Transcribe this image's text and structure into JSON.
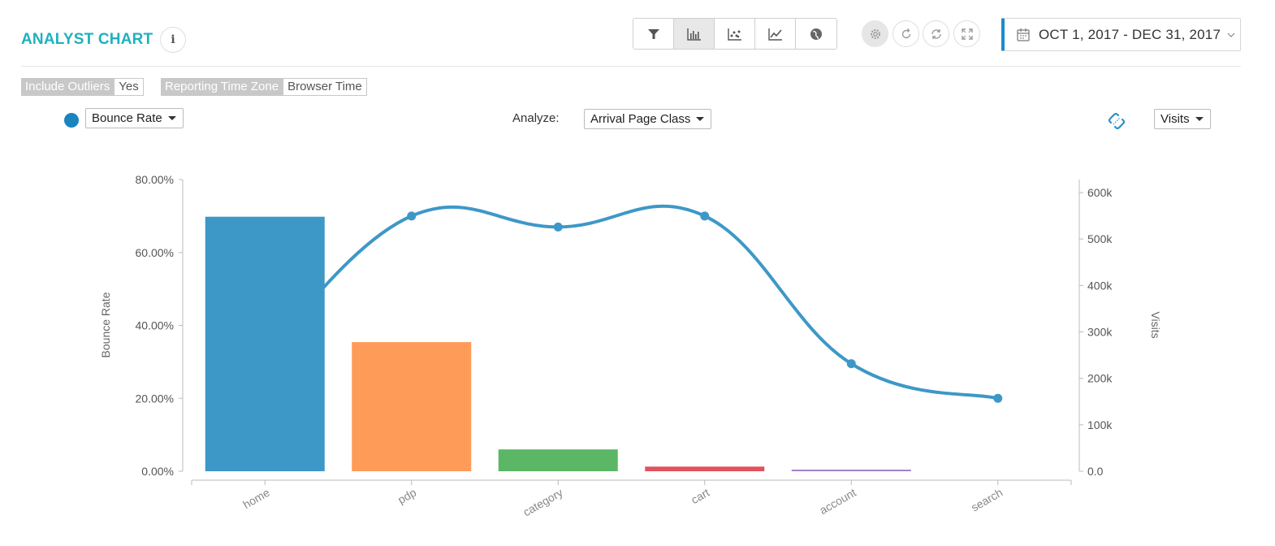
{
  "header": {
    "title": "ANALYST CHART",
    "info_symbol": "i",
    "date_range": "OCT 1, 2017 - DEC 31, 2017"
  },
  "toolbar": {
    "icons": [
      "funnel-icon",
      "bar-chart-icon",
      "scatter-icon",
      "line-chart-icon",
      "globe-icon"
    ],
    "active": "bar-chart-icon"
  },
  "actions": [
    "gear-icon",
    "refresh-icon",
    "sync-icon",
    "expand-icon"
  ],
  "filters": [
    {
      "key": "Include Outliers",
      "value": "Yes"
    },
    {
      "key": "Reporting Time Zone",
      "value": "Browser Time"
    }
  ],
  "controls": {
    "metric_select": "Bounce Rate",
    "analyze_label": "Analyze:",
    "analyze_select": "Arrival Page Class",
    "secondary_select": "Visits",
    "metric_color": "#1a84bf"
  },
  "chart_data": {
    "type": "bar",
    "categories": [
      "home",
      "pdp",
      "category",
      "cart",
      "account",
      "search"
    ],
    "y_label": "Bounce Rate",
    "y2_label": "Visits",
    "y_ticks": [
      "0.00%",
      "20.00%",
      "40.00%",
      "60.00%",
      "80.00%"
    ],
    "y2_ticks": [
      "0.0",
      "100k",
      "200k",
      "300k",
      "400k",
      "500k",
      "600k"
    ],
    "y_range": [
      0,
      80
    ],
    "y2_range": [
      0,
      628000
    ],
    "bar_series": {
      "values": [
        548000,
        278000,
        47000,
        10000,
        3000,
        0
      ],
      "colors": [
        "#3d98c7",
        "#fe9b58",
        "#5bb765",
        "#e0525c",
        "#a381c9",
        "#cccccc"
      ],
      "axis": "Visits"
    },
    "line_series": {
      "values": [
        32.5,
        70.0,
        67.0,
        70.0,
        29.5,
        20.0
      ],
      "color": "#3d98c7",
      "axis": "Bounce Rate"
    }
  }
}
